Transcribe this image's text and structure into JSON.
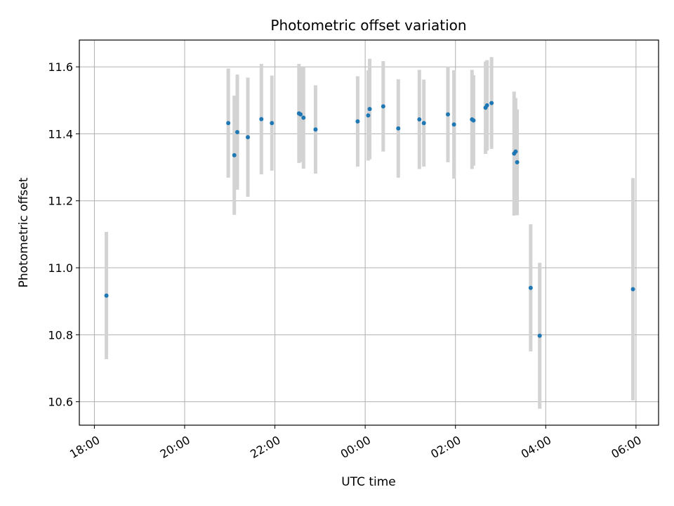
{
  "chart_data": {
    "type": "scatter",
    "title": "Photometric offset variation",
    "xlabel": "UTC time",
    "ylabel": "Photometric offset",
    "grid": true,
    "x_tick_labels": [
      "18:00",
      "20:00",
      "22:00",
      "00:00",
      "02:00",
      "04:00",
      "06:00"
    ],
    "y_tick_labels": [
      "10.6",
      "10.8",
      "11.0",
      "11.2",
      "11.4",
      "11.6"
    ],
    "y_ticks": [
      10.6,
      10.8,
      11.0,
      11.2,
      11.4,
      11.6
    ],
    "xlim": [
      "17:40",
      "06:30"
    ],
    "ylim": [
      10.53,
      11.68
    ],
    "marker_color": "#1f77b4",
    "errorbar_color": "#d3d3d3",
    "series": [
      {
        "points": [
          {
            "x": "18:16",
            "y": 10.917,
            "err": 0.19
          },
          {
            "x": "20:58",
            "y": 11.432,
            "err": 0.163
          },
          {
            "x": "21:06",
            "y": 11.336,
            "err": 0.178
          },
          {
            "x": "21:10",
            "y": 11.405,
            "err": 0.172
          },
          {
            "x": "21:24",
            "y": 11.39,
            "err": 0.178
          },
          {
            "x": "21:42",
            "y": 11.444,
            "err": 0.165
          },
          {
            "x": "21:56",
            "y": 11.432,
            "err": 0.142
          },
          {
            "x": "22:32",
            "y": 11.461,
            "err": 0.148
          },
          {
            "x": "22:34",
            "y": 11.458,
            "err": 0.142
          },
          {
            "x": "22:38",
            "y": 11.448,
            "err": 0.152
          },
          {
            "x": "22:54",
            "y": 11.413,
            "err": 0.132
          },
          {
            "x": "23:50",
            "y": 11.437,
            "err": 0.135
          },
          {
            "x": "00:04",
            "y": 11.455,
            "err": 0.135
          },
          {
            "x": "00:06",
            "y": 11.474,
            "err": 0.15
          },
          {
            "x": "00:24",
            "y": 11.482,
            "err": 0.135
          },
          {
            "x": "00:44",
            "y": 11.416,
            "err": 0.147
          },
          {
            "x": "01:12",
            "y": 11.443,
            "err": 0.148
          },
          {
            "x": "01:18",
            "y": 11.432,
            "err": 0.13
          },
          {
            "x": "01:50",
            "y": 11.458,
            "err": 0.143
          },
          {
            "x": "01:58",
            "y": 11.428,
            "err": 0.162
          },
          {
            "x": "02:22",
            "y": 11.443,
            "err": 0.148
          },
          {
            "x": "02:24",
            "y": 11.44,
            "err": 0.135
          },
          {
            "x": "02:40",
            "y": 11.478,
            "err": 0.138
          },
          {
            "x": "02:42",
            "y": 11.485,
            "err": 0.135
          },
          {
            "x": "02:48",
            "y": 11.492,
            "err": 0.137
          },
          {
            "x": "03:18",
            "y": 11.341,
            "err": 0.185
          },
          {
            "x": "03:20",
            "y": 11.347,
            "err": 0.16
          },
          {
            "x": "03:22",
            "y": 11.315,
            "err": 0.158
          },
          {
            "x": "03:40",
            "y": 10.94,
            "err": 0.19
          },
          {
            "x": "03:52",
            "y": 10.797,
            "err": 0.218
          },
          {
            "x": "05:56",
            "y": 10.936,
            "err": 0.332
          }
        ]
      }
    ]
  }
}
